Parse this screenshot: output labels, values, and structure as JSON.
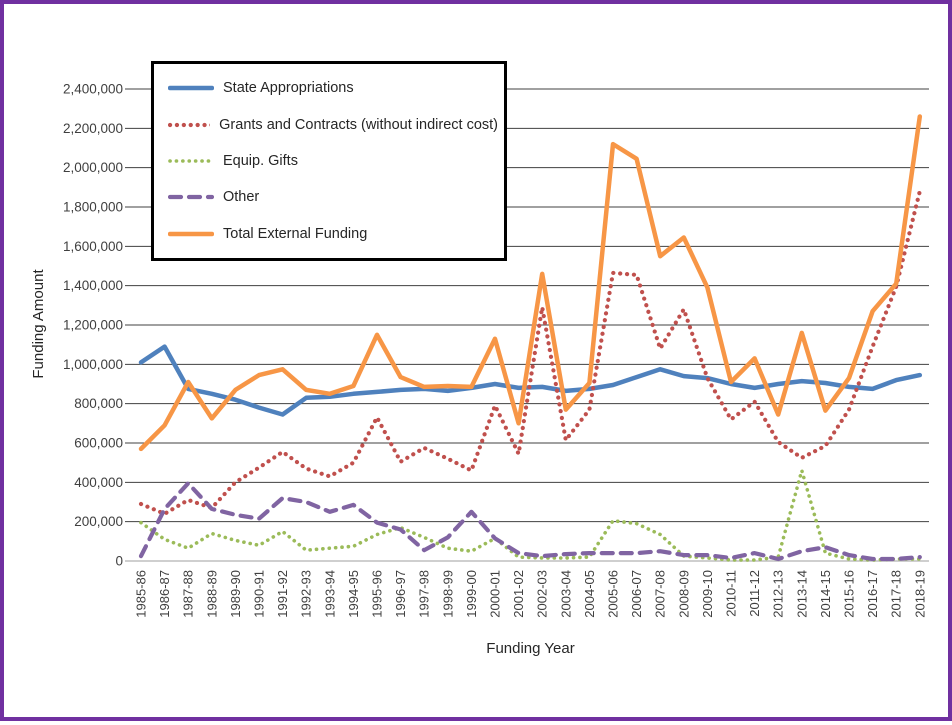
{
  "page": {
    "border_color": "#7030A0",
    "background": "#FFFFFF"
  },
  "chart_data": {
    "type": "line",
    "title": "",
    "xlabel": "Funding Year",
    "ylabel": "Funding Amount",
    "ylim": [
      0,
      2400000
    ],
    "ytick_step": 200000,
    "ytick_labels": [
      "0",
      "200,000",
      "400,000",
      "600,000",
      "800,000",
      "1,000,000",
      "1,200,000",
      "1,400,000",
      "1,600,000",
      "1,800,000",
      "2,000,000",
      "2,200,000",
      "2,400,000"
    ],
    "grid": "horizontal",
    "gridline_color": "#404040",
    "axis_line_color": "#BFBFBF",
    "tick_label_color": "#3F3F3F",
    "legend_position": "top-left-inside",
    "categories": [
      "1985-86",
      "1986-87",
      "1987-88",
      "1988-89",
      "1989-90",
      "1990-91",
      "1991-92",
      "1992-93",
      "1993-94",
      "1994-95",
      "1995-96",
      "1996-97",
      "1997-98",
      "1998-99",
      "1999-00",
      "2000-01",
      "2001-02",
      "2002-03",
      "2003-04",
      "2004-05",
      "2005-06",
      "2006-07",
      "2007-08",
      "2008-09",
      "2009-10",
      "2010-11",
      "2011-12",
      "2012-13",
      "2013-14",
      "2014-15",
      "2015-16",
      "2016-17",
      "2017-18",
      "2018-19"
    ],
    "series": [
      {
        "name": "State Appropriations",
        "color": "#4F81BD",
        "dash": "solid",
        "values": [
          1010000,
          1090000,
          875000,
          850000,
          820000,
          780000,
          745000,
          830000,
          835000,
          850000,
          860000,
          870000,
          875000,
          865000,
          880000,
          900000,
          880000,
          885000,
          865000,
          875000,
          895000,
          935000,
          975000,
          940000,
          930000,
          900000,
          880000,
          900000,
          915000,
          905000,
          885000,
          875000,
          920000,
          945000
        ]
      },
      {
        "name": "Grants and Contracts (without indirect cost)",
        "color": "#C0504D",
        "dash": "dotted",
        "values": [
          290000,
          240000,
          310000,
          270000,
          400000,
          475000,
          555000,
          470000,
          430000,
          500000,
          730000,
          505000,
          575000,
          520000,
          460000,
          790000,
          545000,
          1290000,
          615000,
          770000,
          1465000,
          1455000,
          1080000,
          1280000,
          930000,
          720000,
          810000,
          605000,
          525000,
          585000,
          770000,
          1090000,
          1395000,
          1880000
        ]
      },
      {
        "name": "Equip. Gifts",
        "color": "#9BBB59",
        "dash": "dotted-small",
        "values": [
          195000,
          110000,
          65000,
          140000,
          105000,
          80000,
          150000,
          55000,
          65000,
          75000,
          135000,
          170000,
          120000,
          65000,
          50000,
          115000,
          20000,
          15000,
          15000,
          20000,
          205000,
          190000,
          135000,
          25000,
          15000,
          5000,
          5000,
          20000,
          460000,
          40000,
          10000,
          5000,
          10000,
          10000
        ]
      },
      {
        "name": "Other",
        "color": "#8064A2",
        "dash": "dashed",
        "values": [
          25000,
          265000,
          395000,
          265000,
          235000,
          215000,
          320000,
          300000,
          250000,
          285000,
          195000,
          160000,
          55000,
          120000,
          250000,
          115000,
          40000,
          25000,
          35000,
          40000,
          40000,
          40000,
          50000,
          30000,
          30000,
          15000,
          40000,
          10000,
          50000,
          70000,
          30000,
          10000,
          10000,
          20000
        ]
      },
      {
        "name": "Total External Funding",
        "color": "#F79646",
        "dash": "solid",
        "values": [
          570000,
          690000,
          910000,
          725000,
          870000,
          945000,
          975000,
          870000,
          850000,
          890000,
          1150000,
          935000,
          885000,
          890000,
          885000,
          1130000,
          700000,
          1460000,
          770000,
          905000,
          2120000,
          2045000,
          1550000,
          1645000,
          1390000,
          910000,
          1030000,
          745000,
          1160000,
          765000,
          930000,
          1270000,
          1410000,
          2260000
        ]
      }
    ]
  }
}
